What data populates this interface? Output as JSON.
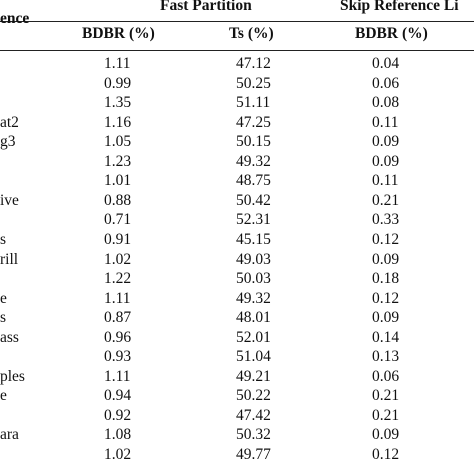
{
  "header": {
    "sequence_label": "ence",
    "group_fast": "Fast Partition",
    "group_skip": "Skip Reference Li",
    "col_bdbr_fast": "BDBR (%)",
    "col_ts": "Ts (%)",
    "col_bdbr_skip": "BDBR (%)"
  },
  "rows": [
    {
      "seq": "",
      "bdbr_fast": "1.11",
      "ts": "47.12",
      "bdbr_skip": "0.04"
    },
    {
      "seq": "",
      "bdbr_fast": "0.99",
      "ts": "50.25",
      "bdbr_skip": "0.06"
    },
    {
      "seq": "",
      "bdbr_fast": "1.35",
      "ts": "51.11",
      "bdbr_skip": "0.08"
    },
    {
      "seq": "at2",
      "bdbr_fast": "1.16",
      "ts": "47.25",
      "bdbr_skip": "0.11"
    },
    {
      "seq": "g3",
      "bdbr_fast": "1.05",
      "ts": "50.15",
      "bdbr_skip": "0.09"
    },
    {
      "seq": "",
      "bdbr_fast": "1.23",
      "ts": "49.32",
      "bdbr_skip": "0.09"
    },
    {
      "seq": "",
      "bdbr_fast": "1.01",
      "ts": "48.75",
      "bdbr_skip": "0.11"
    },
    {
      "seq": "ive",
      "bdbr_fast": "0.88",
      "ts": "50.42",
      "bdbr_skip": "0.21"
    },
    {
      "seq": "",
      "bdbr_fast": "0.71",
      "ts": "52.31",
      "bdbr_skip": "0.33"
    },
    {
      "seq": "s",
      "bdbr_fast": "0.91",
      "ts": "45.15",
      "bdbr_skip": "0.12"
    },
    {
      "seq": "rill",
      "bdbr_fast": "1.02",
      "ts": "49.03",
      "bdbr_skip": "0.09"
    },
    {
      "seq": "",
      "bdbr_fast": "1.22",
      "ts": "50.03",
      "bdbr_skip": "0.18"
    },
    {
      "seq": "e",
      "bdbr_fast": "1.11",
      "ts": "49.32",
      "bdbr_skip": "0.12"
    },
    {
      "seq": "s",
      "bdbr_fast": "0.87",
      "ts": "48.01",
      "bdbr_skip": "0.09"
    },
    {
      "seq": "ass",
      "bdbr_fast": "0.96",
      "ts": "52.01",
      "bdbr_skip": "0.14"
    },
    {
      "seq": "",
      "bdbr_fast": "0.93",
      "ts": "51.04",
      "bdbr_skip": "0.13"
    },
    {
      "seq": "ples",
      "bdbr_fast": "1.11",
      "ts": "49.21",
      "bdbr_skip": "0.06"
    },
    {
      "seq": "e",
      "bdbr_fast": "0.94",
      "ts": "50.22",
      "bdbr_skip": "0.21"
    },
    {
      "seq": "",
      "bdbr_fast": "0.92",
      "ts": "47.42",
      "bdbr_skip": "0.21"
    },
    {
      "seq": "ara",
      "bdbr_fast": "1.08",
      "ts": "50.32",
      "bdbr_skip": "0.09"
    },
    {
      "seq": "",
      "bdbr_fast": "1.02",
      "ts": "49.77",
      "bdbr_skip": "0.12"
    }
  ]
}
